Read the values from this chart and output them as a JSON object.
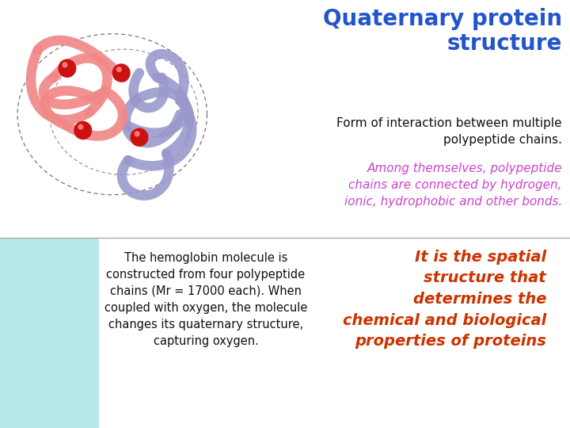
{
  "title_line1": "Quaternary protein",
  "title_line2": "structure",
  "title_color": "#2255cc",
  "subtitle_text": "Form of interaction between multiple\npolypeptide chains.",
  "subtitle_color": "#111111",
  "purple_text": "Among themselves, polypeptide\nchains are connected by hydrogen,\nionic, hydrophobic and other bonds.",
  "purple_color": "#cc44cc",
  "hemo_text": "The hemoglobin molecule is\nconstructed from four polypeptide\nchains (Mr = 17000 each). When\ncoupled with oxygen, the molecule\nchanges its quaternary structure,\ncapturing oxygen.",
  "hemo_color": "#111111",
  "orange_text": "It is the spatial\nstructure that\ndetermines the\nchemical and biological\nproperties of proteins",
  "orange_color": "#cc3300",
  "bg_color": "#ffffff",
  "panel_color": "#b8e8ec",
  "salmon": "#F08888",
  "lavender": "#9898CC",
  "red_spot": "#CC1111",
  "title_fontsize": 20,
  "subtitle_fontsize": 11,
  "body_fontsize": 10.5,
  "orange_fontsize": 14
}
